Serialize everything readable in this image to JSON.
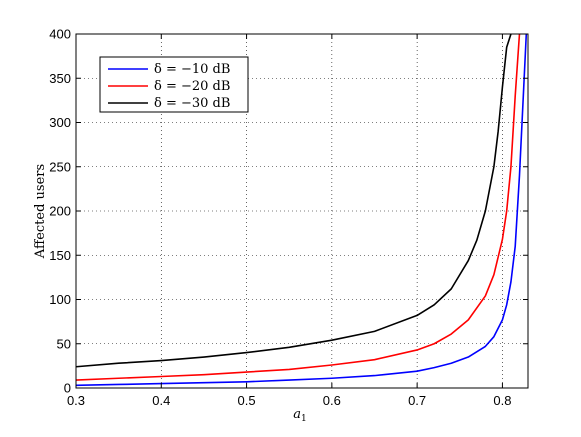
{
  "chart_data": {
    "type": "line",
    "title": "",
    "xlabel": "a",
    "xlabel_subscript": "1",
    "ylabel": "Affected users",
    "xlim": [
      0.3,
      0.83
    ],
    "ylim": [
      0,
      400
    ],
    "xticks": [
      "0.3",
      "0.4",
      "0.5",
      "0.6",
      "0.7",
      "0.8"
    ],
    "xtick_values": [
      0.3,
      0.4,
      0.5,
      0.6,
      0.7,
      0.8
    ],
    "yticks": [
      "0",
      "50",
      "100",
      "150",
      "200",
      "250",
      "300",
      "350",
      "400"
    ],
    "ytick_values": [
      0,
      50,
      100,
      150,
      200,
      250,
      300,
      350,
      400
    ],
    "grid": true,
    "legend_position": "top-left",
    "series": [
      {
        "name": "δ = −10 dB",
        "color": "#0000ff",
        "x": [
          0.3,
          0.35,
          0.4,
          0.45,
          0.5,
          0.55,
          0.6,
          0.65,
          0.7,
          0.72,
          0.74,
          0.76,
          0.78,
          0.79,
          0.8,
          0.805,
          0.81,
          0.815,
          0.82,
          0.825,
          0.828
        ],
        "y": [
          3,
          4,
          5,
          6,
          7,
          9,
          11,
          14,
          19,
          23,
          28,
          35,
          47,
          58,
          77,
          94,
          120,
          160,
          240,
          340,
          400
        ]
      },
      {
        "name": "δ = −20 dB",
        "color": "#ff0000",
        "x": [
          0.3,
          0.35,
          0.4,
          0.45,
          0.5,
          0.55,
          0.6,
          0.65,
          0.7,
          0.72,
          0.74,
          0.76,
          0.78,
          0.79,
          0.8,
          0.805,
          0.81,
          0.815,
          0.82
        ],
        "y": [
          9,
          11,
          13,
          15,
          18,
          21,
          26,
          32,
          43,
          50,
          61,
          77,
          104,
          128,
          168,
          200,
          250,
          330,
          400
        ]
      },
      {
        "name": "δ = −30 dB",
        "color": "#000000",
        "x": [
          0.3,
          0.35,
          0.4,
          0.45,
          0.5,
          0.55,
          0.6,
          0.65,
          0.7,
          0.72,
          0.74,
          0.76,
          0.77,
          0.78,
          0.79,
          0.795,
          0.8,
          0.805,
          0.81
        ],
        "y": [
          24,
          28,
          31,
          35,
          40,
          46,
          54,
          64,
          82,
          94,
          112,
          144,
          167,
          200,
          250,
          290,
          340,
          385,
          400
        ]
      }
    ]
  }
}
